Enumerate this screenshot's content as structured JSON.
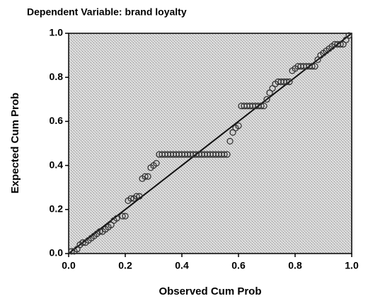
{
  "chart_data": {
    "type": "scatter",
    "title": "Dependent Variable: brand loyalty",
    "xlabel": "Observed Cum Prob",
    "ylabel": "Expected Cum Prob",
    "xlim": [
      0,
      1
    ],
    "ylim": [
      0,
      1
    ],
    "xticks": [
      {
        "value": 0,
        "label": "0.0"
      },
      0.2,
      0.4,
      0.6,
      0.8,
      {
        "value": 1,
        "label": "1.0"
      }
    ],
    "yticks": [
      {
        "value": 0,
        "label": "0.0"
      },
      0.2,
      0.4,
      0.6,
      0.8,
      {
        "value": 1,
        "label": "1.0"
      }
    ],
    "diagonal": true,
    "color": "#333333",
    "x": [
      0.01,
      0.02,
      0.03,
      0.04,
      0.05,
      0.06,
      0.07,
      0.08,
      0.09,
      0.1,
      0.11,
      0.12,
      0.13,
      0.14,
      0.15,
      0.16,
      0.17,
      0.19,
      0.2,
      0.21,
      0.22,
      0.23,
      0.24,
      0.25,
      0.26,
      0.27,
      0.28,
      0.29,
      0.3,
      0.31,
      0.32,
      0.33,
      0.34,
      0.35,
      0.36,
      0.37,
      0.38,
      0.39,
      0.4,
      0.41,
      0.42,
      0.43,
      0.44,
      0.45,
      0.46,
      0.47,
      0.48,
      0.49,
      0.5,
      0.51,
      0.52,
      0.53,
      0.54,
      0.55,
      0.56,
      0.57,
      0.58,
      0.59,
      0.6,
      0.61,
      0.62,
      0.63,
      0.64,
      0.65,
      0.66,
      0.67,
      0.68,
      0.69,
      0.7,
      0.71,
      0.72,
      0.73,
      0.74,
      0.75,
      0.76,
      0.77,
      0.78,
      0.79,
      0.8,
      0.81,
      0.82,
      0.83,
      0.84,
      0.85,
      0.86,
      0.87,
      0.88,
      0.89,
      0.9,
      0.91,
      0.92,
      0.93,
      0.94,
      0.95,
      0.96,
      0.97,
      0.98,
      0.99
    ],
    "y": [
      0.01,
      0.01,
      0.02,
      0.04,
      0.05,
      0.05,
      0.06,
      0.07,
      0.08,
      0.09,
      0.1,
      0.1,
      0.11,
      0.12,
      0.13,
      0.15,
      0.16,
      0.17,
      0.17,
      0.24,
      0.25,
      0.25,
      0.26,
      0.26,
      0.34,
      0.35,
      0.35,
      0.39,
      0.4,
      0.41,
      0.45,
      0.45,
      0.45,
      0.45,
      0.45,
      0.45,
      0.45,
      0.45,
      0.45,
      0.45,
      0.45,
      0.45,
      0.45,
      0.45,
      0.45,
      0.45,
      0.45,
      0.45,
      0.45,
      0.45,
      0.45,
      0.45,
      0.45,
      0.45,
      0.45,
      0.51,
      0.55,
      0.57,
      0.58,
      0.67,
      0.67,
      0.67,
      0.67,
      0.67,
      0.67,
      0.67,
      0.67,
      0.67,
      0.7,
      0.73,
      0.75,
      0.77,
      0.78,
      0.78,
      0.78,
      0.78,
      0.78,
      0.83,
      0.84,
      0.85,
      0.85,
      0.85,
      0.85,
      0.85,
      0.85,
      0.85,
      0.88,
      0.9,
      0.91,
      0.92,
      0.93,
      0.94,
      0.95,
      0.95,
      0.95,
      0.95,
      0.97,
      0.99
    ]
  }
}
